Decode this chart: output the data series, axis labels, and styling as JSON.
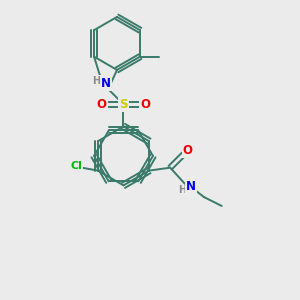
{
  "bg_color": "#ebebeb",
  "bond_color": "#3a7a6a",
  "lw": 1.4,
  "dbo": 0.055,
  "fs": 8.5,
  "atom_colors": {
    "H": "#8a8a8a",
    "N": "#0000ee",
    "O": "#ee0000",
    "S": "#cccc00",
    "Cl": "#00bb00"
  },
  "bc": "#3a7a6a"
}
